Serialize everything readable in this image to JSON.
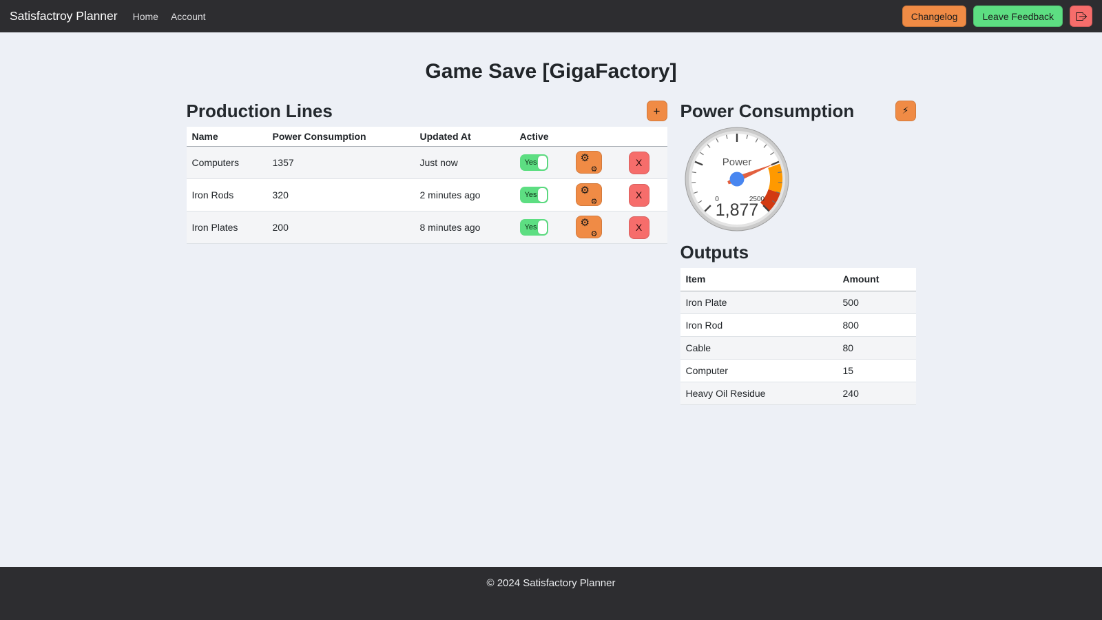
{
  "navbar": {
    "brand": "Satisfactroy Planner",
    "links": [
      {
        "label": "Home"
      },
      {
        "label": "Account"
      }
    ],
    "changelog_label": "Changelog",
    "feedback_label": "Leave Feedback",
    "logout_icon": "box-arrow-right"
  },
  "page": {
    "title": "Game Save [GigaFactory]"
  },
  "production": {
    "heading": "Production Lines",
    "add_label": "+",
    "gear_icon": "⚙",
    "delete_label": "X",
    "columns": [
      "Name",
      "Power Consumption",
      "Updated At",
      "Active"
    ],
    "rows": [
      {
        "name": "Computers",
        "power": "1357",
        "updated": "Just now",
        "active_label": "Yes"
      },
      {
        "name": "Iron Rods",
        "power": "320",
        "updated": "2 minutes ago",
        "active_label": "Yes"
      },
      {
        "name": "Iron Plates",
        "power": "200",
        "updated": "8 minutes ago",
        "active_label": "Yes"
      }
    ]
  },
  "power": {
    "heading": "Power Consumption",
    "bolt_icon": "⚡",
    "gauge": {
      "label": "Power",
      "value": 1877,
      "display_value": "1,877",
      "min": 0,
      "max": 2500,
      "min_label": "0",
      "max_label": "2500",
      "zones": [
        {
          "from": 1900,
          "to": 2250,
          "color": "#ff9900"
        },
        {
          "from": 2250,
          "to": 2500,
          "color": "#d23a12"
        }
      ],
      "needle_color": "#e2603f",
      "hub_color": "#4886f0"
    }
  },
  "outputs": {
    "heading": "Outputs",
    "columns": [
      "Item",
      "Amount"
    ],
    "rows": [
      {
        "item": "Iron Plate",
        "amount": "500"
      },
      {
        "item": "Iron Rod",
        "amount": "800"
      },
      {
        "item": "Cable",
        "amount": "80"
      },
      {
        "item": "Computer",
        "amount": "15"
      },
      {
        "item": "Heavy Oil Residue",
        "amount": "240"
      }
    ]
  },
  "footer": {
    "copyright": "© 2024 Satisfactory Planner"
  },
  "colors": {
    "accent_orange": "#f08b45",
    "accent_green": "#5dde82",
    "accent_red": "#f66d6b",
    "navbar_bg": "#2d2d30",
    "page_bg": "#edf0f6"
  }
}
